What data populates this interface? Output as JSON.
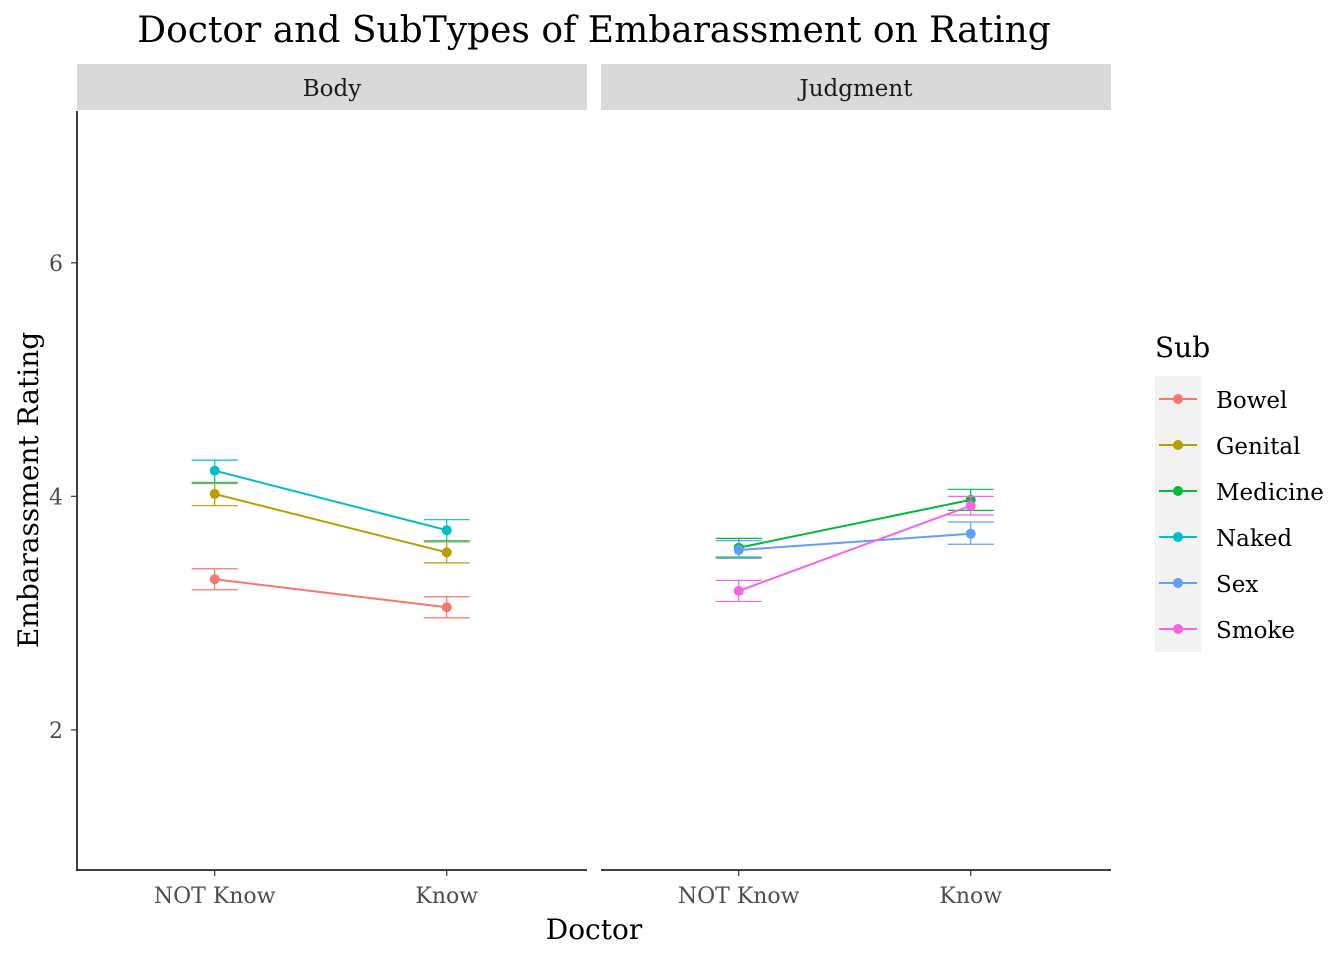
{
  "chart_data": {
    "type": "line",
    "title": "Doctor and SubTypes of Embarassment on Rating",
    "xlabel": "Doctor",
    "ylabel": "Embarassment Rating",
    "ylim": [
      0.8,
      7.3
    ],
    "yticks": [
      2,
      4,
      6
    ],
    "categories": [
      "NOT Know",
      "Know"
    ],
    "legend": {
      "title": "Sub",
      "position": "right"
    },
    "grid": false,
    "colors": {
      "Bowel": "#F8766D",
      "Genital": "#B79F00",
      "Medicine": "#00BA38",
      "Naked": "#00BFC4",
      "Sex": "#619CFF",
      "Smoke": "#F564E3"
    },
    "legend_items": [
      "Bowel",
      "Genital",
      "Medicine",
      "Naked",
      "Sex",
      "Smoke"
    ],
    "panels": [
      {
        "label": "Body",
        "series": [
          {
            "name": "Bowel",
            "values": [
              3.29,
              3.05
            ],
            "lower": [
              3.2,
              2.96
            ],
            "upper": [
              3.38,
              3.14
            ]
          },
          {
            "name": "Genital",
            "values": [
              4.02,
              3.52
            ],
            "lower": [
              3.92,
              3.43
            ],
            "upper": [
              4.11,
              3.61
            ]
          },
          {
            "name": "Naked",
            "values": [
              4.22,
              3.71
            ],
            "lower": [
              4.12,
              3.62
            ],
            "upper": [
              4.31,
              3.8
            ]
          }
        ]
      },
      {
        "label": "Judgment",
        "series": [
          {
            "name": "Medicine",
            "values": [
              3.56,
              3.97
            ],
            "lower": [
              3.48,
              3.88
            ],
            "upper": [
              3.64,
              4.06
            ]
          },
          {
            "name": "Sex",
            "values": [
              3.54,
              3.68
            ],
            "lower": [
              3.47,
              3.59
            ],
            "upper": [
              3.62,
              3.78
            ]
          },
          {
            "name": "Smoke",
            "values": [
              3.19,
              3.92
            ],
            "lower": [
              3.1,
              3.84
            ],
            "upper": [
              3.28,
              4.0
            ]
          }
        ]
      }
    ]
  }
}
